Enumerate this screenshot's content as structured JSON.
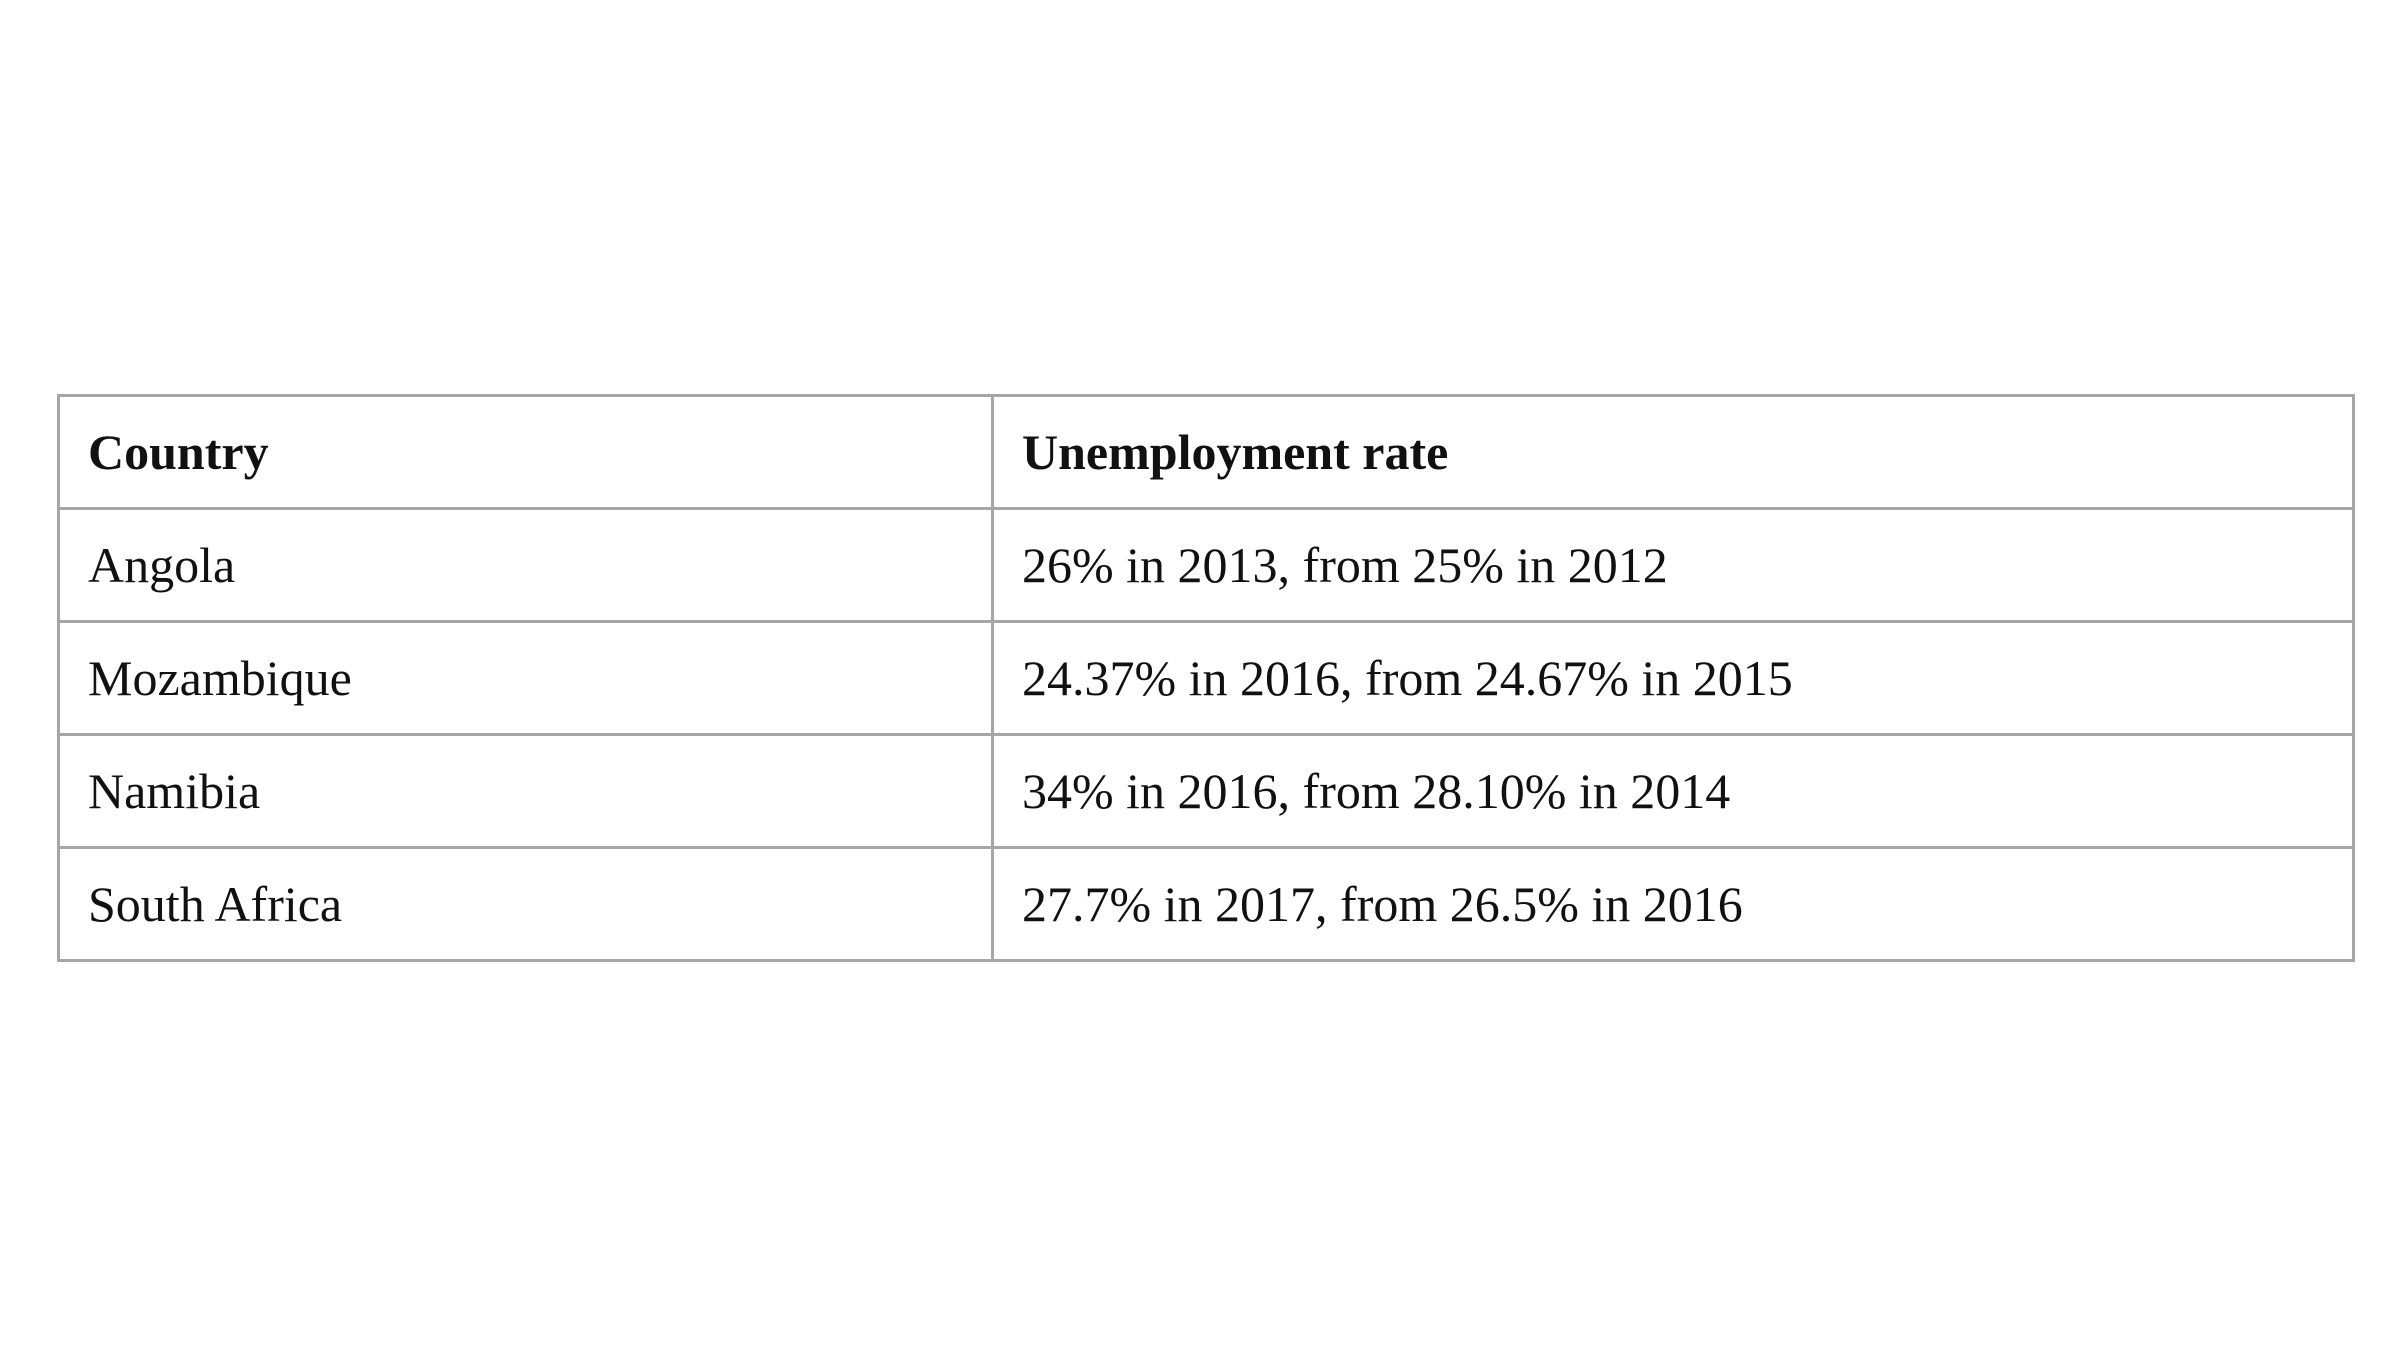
{
  "table": {
    "header": [
      "Country",
      "Unemployment rate"
    ],
    "rows": [
      [
        "Angola",
        "26% in 2013, from 25% in 2012"
      ],
      [
        "Mozambique",
        "24.37% in 2016, from 24.67% in 2015"
      ],
      [
        "Namibia",
        "34% in 2016, from 28.10% in 2014"
      ],
      [
        "South Africa",
        "27.7% in 2017, from 26.5% in 2016"
      ]
    ]
  }
}
